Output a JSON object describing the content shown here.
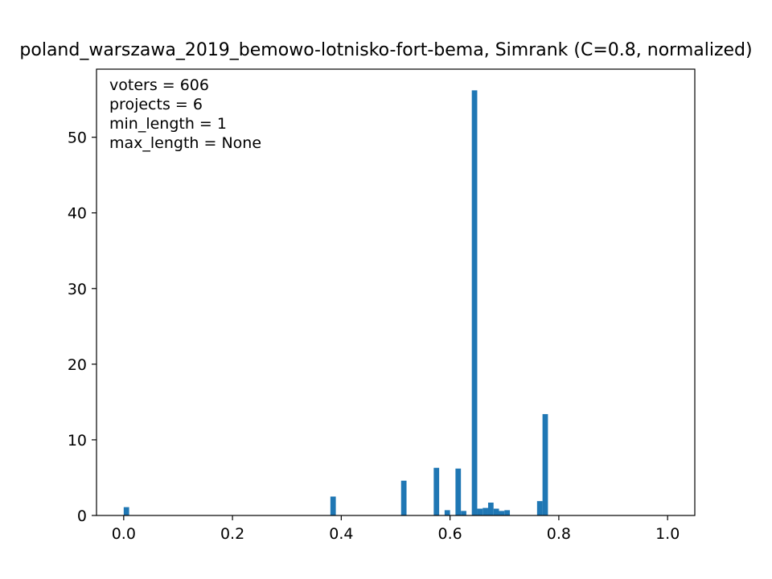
{
  "chart_data": {
    "type": "bar",
    "title": "poland_warszawa_2019_bemowo-lotnisko-fort-bema, Simrank (C=0.8, normalized)",
    "annotations": [
      "voters = 606",
      "projects = 6",
      "min_length = 1",
      "max_length = None"
    ],
    "xlabel": "",
    "ylabel": "",
    "xlim": [
      -0.05,
      1.05
    ],
    "ylim": [
      0,
      59
    ],
    "xticks": [
      "0.0",
      "0.2",
      "0.4",
      "0.6",
      "0.8",
      "1.0"
    ],
    "yticks": [
      "0",
      "10",
      "20",
      "30",
      "40",
      "50"
    ],
    "bin_width": 0.01,
    "bins": [
      {
        "x": 0.0,
        "value": 1.1
      },
      {
        "x": 0.38,
        "value": 2.5
      },
      {
        "x": 0.51,
        "value": 4.6
      },
      {
        "x": 0.57,
        "value": 6.3
      },
      {
        "x": 0.59,
        "value": 0.7
      },
      {
        "x": 0.61,
        "value": 6.2
      },
      {
        "x": 0.62,
        "value": 0.6
      },
      {
        "x": 0.64,
        "value": 56.2
      },
      {
        "x": 0.65,
        "value": 0.9
      },
      {
        "x": 0.66,
        "value": 1.0
      },
      {
        "x": 0.67,
        "value": 1.7
      },
      {
        "x": 0.68,
        "value": 0.9
      },
      {
        "x": 0.69,
        "value": 0.6
      },
      {
        "x": 0.7,
        "value": 0.7
      },
      {
        "x": 0.76,
        "value": 1.9
      },
      {
        "x": 0.77,
        "value": 13.4
      }
    ],
    "bar_color": "#1f77b4",
    "grid": false
  }
}
